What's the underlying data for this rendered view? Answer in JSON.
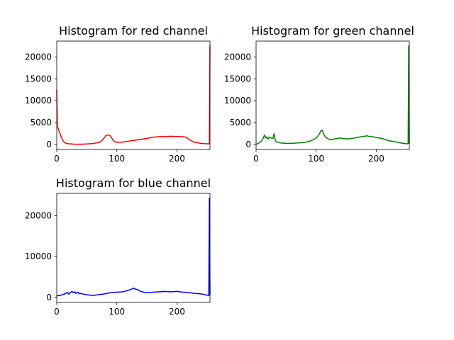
{
  "chart_data": [
    {
      "type": "line",
      "title": "Histogram for red channel",
      "color": "#ff0000",
      "xlim": [
        0,
        255
      ],
      "ylim": [
        -1100,
        23600
      ],
      "xticks": [
        "0",
        "100",
        "200"
      ],
      "yticks": [
        "0",
        "5000",
        "10000",
        "15000",
        "20000"
      ],
      "series": [
        {
          "x": [
            0,
            1,
            2,
            3,
            4,
            6,
            8,
            10,
            12,
            15,
            20,
            25,
            30,
            40,
            50,
            60,
            70,
            75,
            80,
            82,
            85,
            88,
            90,
            92,
            95,
            100,
            110,
            120,
            130,
            140,
            150,
            160,
            170,
            180,
            190,
            200,
            210,
            215,
            220,
            225,
            230,
            240,
            250,
            253,
            254,
            255
          ],
          "y": [
            12500,
            4200,
            3800,
            3400,
            3000,
            2300,
            1600,
            1000,
            600,
            300,
            200,
            150,
            100,
            100,
            150,
            250,
            500,
            900,
            1700,
            2100,
            2200,
            2100,
            1900,
            1400,
            800,
            500,
            600,
            800,
            1000,
            1200,
            1400,
            1700,
            1800,
            1850,
            1900,
            1850,
            1800,
            1700,
            1200,
            800,
            500,
            300,
            200,
            200,
            200,
            22600
          ]
        }
      ]
    },
    {
      "type": "line",
      "title": "Histogram for green channel",
      "color": "#008000",
      "xlim": [
        0,
        255
      ],
      "ylim": [
        -1100,
        23600
      ],
      "xticks": [
        "0",
        "100",
        "200"
      ],
      "yticks": [
        "0",
        "5000",
        "10000",
        "15000",
        "20000"
      ],
      "series": [
        {
          "x": [
            0,
            3,
            5,
            8,
            10,
            12,
            14,
            16,
            18,
            20,
            22,
            25,
            28,
            30,
            32,
            35,
            40,
            50,
            60,
            70,
            80,
            90,
            95,
            100,
            105,
            108,
            110,
            113,
            115,
            120,
            125,
            130,
            140,
            150,
            160,
            170,
            175,
            180,
            185,
            190,
            195,
            200,
            205,
            210,
            220,
            230,
            240,
            250,
            252,
            253,
            254,
            255
          ],
          "y": [
            100,
            200,
            400,
            700,
            1000,
            1500,
            2200,
            1500,
            1800,
            1200,
            1700,
            1500,
            1400,
            2500,
            900,
            600,
            400,
            300,
            300,
            400,
            500,
            800,
            1100,
            1500,
            2300,
            3200,
            3300,
            2300,
            1800,
            1300,
            1100,
            1300,
            1500,
            1300,
            1400,
            1700,
            1800,
            1900,
            2000,
            1800,
            1800,
            1600,
            1500,
            1400,
            900,
            700,
            400,
            200,
            200,
            300,
            22500,
            200
          ]
        }
      ]
    },
    {
      "type": "line",
      "title": "Histogram for blue channel",
      "color": "#0000ff",
      "xlim": [
        0,
        255
      ],
      "ylim": [
        -1200,
        25400
      ],
      "xticks": [
        "0",
        "100",
        "200"
      ],
      "yticks": [
        "0",
        "10000",
        "20000"
      ],
      "series": [
        {
          "x": [
            0,
            5,
            10,
            15,
            18,
            20,
            23,
            25,
            28,
            30,
            32,
            35,
            38,
            40,
            45,
            50,
            55,
            60,
            70,
            80,
            90,
            100,
            110,
            115,
            120,
            125,
            128,
            130,
            135,
            140,
            145,
            150,
            160,
            170,
            180,
            190,
            200,
            210,
            220,
            230,
            240,
            250,
            253,
            254,
            255
          ],
          "y": [
            400,
            500,
            700,
            1000,
            1300,
            800,
            1200,
            1500,
            1200,
            1400,
            1000,
            1300,
            900,
            1000,
            800,
            700,
            600,
            500,
            700,
            900,
            1200,
            1300,
            1400,
            1600,
            1800,
            2100,
            2300,
            2100,
            1900,
            1500,
            1300,
            1200,
            1300,
            1400,
            1500,
            1400,
            1500,
            1300,
            1200,
            1000,
            900,
            600,
            500,
            24200,
            500
          ]
        }
      ]
    }
  ]
}
